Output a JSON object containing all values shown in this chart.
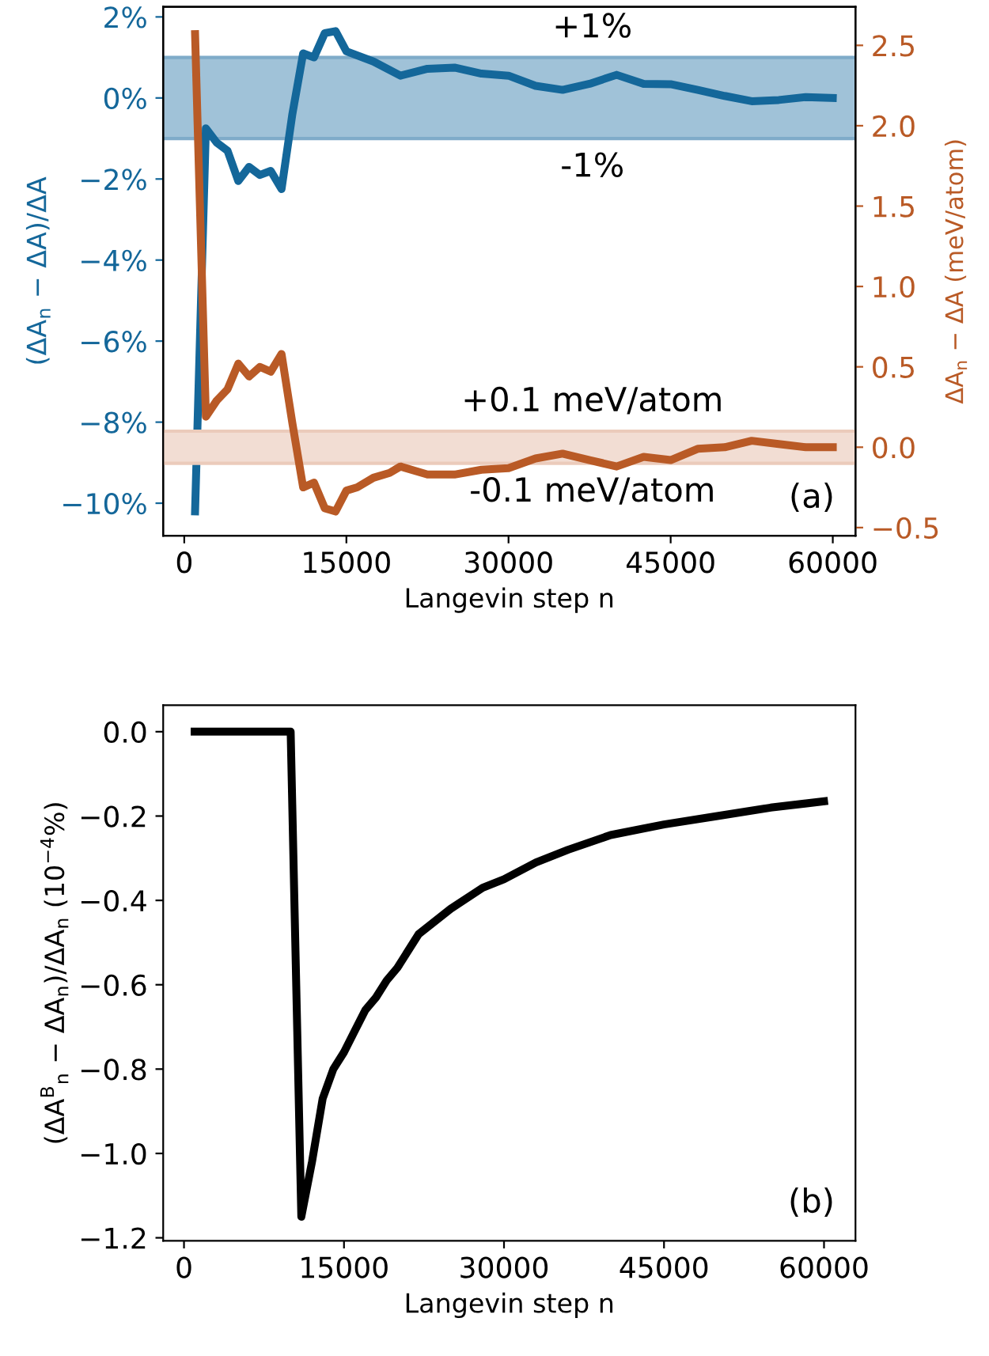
{
  "chart_data": [
    {
      "type": "line",
      "xlabel": "Langevin step n",
      "ylabel": "(ΔA$_{n}$ − ΔA)/ΔA",
      "y2label": "ΔA$_{n}$ − ΔA (meV/atom)",
      "grid": false,
      "legend": false,
      "line_style": "solid",
      "marker": "none",
      "xlim": [
        -1950,
        62100
      ],
      "xticks": [
        0,
        15000,
        30000,
        45000,
        60000
      ],
      "ylim": [
        -10.8,
        2.25
      ],
      "yticks": [
        {
          "value": 2,
          "label": "2%"
        },
        {
          "value": 0,
          "label": "0%"
        },
        {
          "value": -2,
          "label": "−2%"
        },
        {
          "value": -4,
          "label": "−4%"
        },
        {
          "value": -6,
          "label": "−6%"
        },
        {
          "value": -8,
          "label": "−8%"
        },
        {
          "value": -10,
          "label": "−10%"
        }
      ],
      "y2lim": [
        -0.55,
        2.74
      ],
      "y2ticks": [
        {
          "value": 2.5,
          "label": "2.5"
        },
        {
          "value": 2.0,
          "label": "2.0"
        },
        {
          "value": 1.5,
          "label": "1.5"
        },
        {
          "value": 1.0,
          "label": "1.0"
        },
        {
          "value": 0.5,
          "label": "0.5"
        },
        {
          "value": 0.0,
          "label": "0.0"
        },
        {
          "value": -0.5,
          "label": "−0.5"
        }
      ],
      "series": [
        {
          "color": "#14679a",
          "x": [
            1000,
            2000,
            3000,
            4000,
            5000,
            6000,
            7000,
            8000,
            9000,
            10000,
            11000,
            12000,
            13000,
            14000,
            15000,
            17500,
            20000,
            22500,
            25000,
            27500,
            30000,
            32500,
            35000,
            37500,
            40000,
            42500,
            45000,
            47500,
            50000,
            52500,
            55000,
            57500,
            60000
          ],
          "values": [
            -10.2,
            -0.75,
            -1.1,
            -1.3,
            -2.05,
            -1.7,
            -1.9,
            -1.8,
            -2.25,
            -0.4,
            1.1,
            1.0,
            1.6,
            1.65,
            1.15,
            0.9,
            0.55,
            0.72,
            0.75,
            0.6,
            0.55,
            0.3,
            0.2,
            0.35,
            0.57,
            0.35,
            0.34,
            0.2,
            0.05,
            -0.08,
            -0.05,
            0.02,
            0.0
          ]
        },
        {
          "color": "#b95a26",
          "axis": "y2",
          "x": [
            1000,
            2000,
            3000,
            4000,
            5000,
            6000,
            7000,
            8000,
            9000,
            10000,
            11000,
            12000,
            13000,
            14000,
            15000,
            16000,
            17500,
            19000,
            20000,
            22500,
            25000,
            27500,
            30000,
            32500,
            35000,
            37500,
            40000,
            42500,
            45000,
            47500,
            50000,
            52500,
            55000,
            57500,
            60000
          ],
          "values": [
            2.57,
            0.19,
            0.29,
            0.36,
            0.52,
            0.44,
            0.5,
            0.47,
            0.58,
            0.15,
            -0.25,
            -0.22,
            -0.38,
            -0.4,
            -0.27,
            -0.25,
            -0.19,
            -0.16,
            -0.12,
            -0.17,
            -0.17,
            -0.14,
            -0.13,
            -0.07,
            -0.04,
            -0.08,
            -0.12,
            -0.06,
            -0.08,
            -0.01,
            0.0,
            0.04,
            0.02,
            0.0,
            0.0
          ]
        }
      ],
      "bands": [
        {
          "axis": "y",
          "from": -1,
          "to": 1,
          "color": "#a0c2d8"
        },
        {
          "axis": "y2",
          "from": -0.1,
          "to": 0.1,
          "color": "#f2ddd3"
        }
      ],
      "ref_lines": [
        {
          "axis": "y",
          "value": 1,
          "label": "+1%",
          "color": "#7fabc9"
        },
        {
          "axis": "y",
          "value": -1,
          "label": "-1%",
          "color": "#7fabc9"
        },
        {
          "axis": "y2",
          "value": 0.1,
          "label": "+0.1 meV/atom",
          "color": "#ebcbbb"
        },
        {
          "axis": "y2",
          "value": -0.1,
          "label": "-0.1 meV/atom",
          "color": "#ebcbbb"
        }
      ],
      "annotations": [
        "(a)"
      ]
    },
    {
      "type": "line",
      "xlabel": "Langevin step n",
      "ylabel": "(ΔA$^{B}$$_{n}$ − ΔA$_{n}$)/ΔA$_{n}$ (10$^{−4}$%)",
      "grid": false,
      "legend": false,
      "line_style": "solid",
      "marker": "none",
      "xlim": [
        -1950,
        62950
      ],
      "xticks": [
        0,
        15000,
        30000,
        45000,
        60000
      ],
      "ylim": [
        -1.207,
        0.063
      ],
      "yticks": [
        {
          "value": 0.0,
          "label": "0.0"
        },
        {
          "value": -0.2,
          "label": "−0.2"
        },
        {
          "value": -0.4,
          "label": "−0.4"
        },
        {
          "value": -0.6,
          "label": "−0.6"
        },
        {
          "value": -0.8,
          "label": "−0.8"
        },
        {
          "value": -1.0,
          "label": "−1.0"
        },
        {
          "value": -1.2,
          "label": "−1.2"
        }
      ],
      "series": [
        {
          "color": "#000000",
          "x": [
            1000,
            2000,
            3000,
            4000,
            5000,
            6000,
            7000,
            8000,
            9000,
            10000,
            11000,
            12000,
            13000,
            14000,
            15000,
            16000,
            17000,
            18000,
            19000,
            20000,
            22000,
            25000,
            28000,
            30000,
            33000,
            36000,
            40000,
            45000,
            50000,
            55000,
            60000
          ],
          "values": [
            0,
            0,
            0,
            0,
            0,
            0,
            0,
            0,
            0,
            0,
            -1.15,
            -1.02,
            -0.87,
            -0.8,
            -0.76,
            -0.71,
            -0.66,
            -0.63,
            -0.59,
            -0.56,
            -0.48,
            -0.42,
            -0.37,
            -0.35,
            -0.31,
            -0.28,
            -0.245,
            -0.22,
            -0.2,
            -0.18,
            -0.165
          ]
        }
      ],
      "annotations": [
        "(b)"
      ]
    }
  ]
}
